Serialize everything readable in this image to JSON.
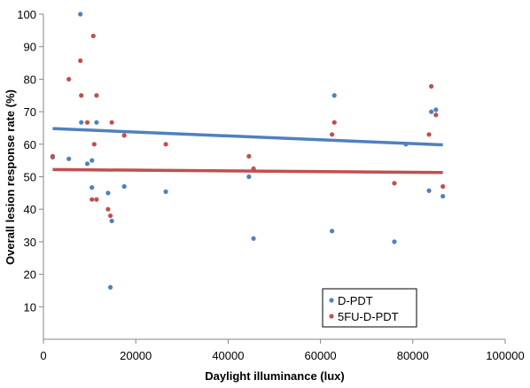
{
  "chart_data": {
    "type": "scatter",
    "xlabel": "Daylight illuminance (lux)",
    "ylabel": "Overall lesion response rate (%)",
    "xlim": [
      0,
      100000
    ],
    "ylim": [
      0,
      100
    ],
    "xticks": [
      0,
      20000,
      40000,
      60000,
      80000,
      100000
    ],
    "yticks": [
      10,
      20,
      30,
      40,
      50,
      60,
      70,
      80,
      90,
      100
    ],
    "grid": false,
    "legend_position": "bottom-right",
    "series": [
      {
        "name": "D-PDT",
        "color": "#4F81BD",
        "points": [
          [
            2000,
            56
          ],
          [
            5500,
            55.5
          ],
          [
            8000,
            100
          ],
          [
            8200,
            66.7
          ],
          [
            9500,
            54
          ],
          [
            10500,
            55
          ],
          [
            10500,
            46.7
          ],
          [
            11500,
            66.7
          ],
          [
            14000,
            45
          ],
          [
            14500,
            16
          ],
          [
            14800,
            36.4
          ],
          [
            17500,
            47
          ],
          [
            26500,
            45.4
          ],
          [
            44500,
            50
          ],
          [
            45500,
            31
          ],
          [
            62500,
            33.3
          ],
          [
            63000,
            75
          ],
          [
            76000,
            30
          ],
          [
            78500,
            60
          ],
          [
            83500,
            45.7
          ],
          [
            84000,
            70
          ],
          [
            85000,
            70.6
          ],
          [
            86500,
            44
          ]
        ],
        "trendline": {
          "x": [
            2000,
            86500
          ],
          "y": [
            64.8,
            59.8
          ]
        }
      },
      {
        "name": "5FU-D-PDT",
        "color": "#C0504D",
        "points": [
          [
            2000,
            56.3
          ],
          [
            5500,
            80
          ],
          [
            8000,
            85.7
          ],
          [
            8200,
            75
          ],
          [
            9500,
            66.7
          ],
          [
            10500,
            43
          ],
          [
            10800,
            93.3
          ],
          [
            11000,
            60
          ],
          [
            11500,
            75
          ],
          [
            11500,
            43
          ],
          [
            14000,
            40
          ],
          [
            14500,
            38
          ],
          [
            14800,
            66.7
          ],
          [
            17500,
            62.7
          ],
          [
            26500,
            60
          ],
          [
            44500,
            56.3
          ],
          [
            45500,
            52.5
          ],
          [
            62500,
            63
          ],
          [
            63000,
            66.7
          ],
          [
            76000,
            48
          ],
          [
            83500,
            63
          ],
          [
            84000,
            77.8
          ],
          [
            85000,
            69
          ],
          [
            86500,
            47
          ]
        ],
        "trendline": {
          "x": [
            2000,
            86500
          ],
          "y": [
            52.2,
            51.3
          ]
        }
      }
    ]
  }
}
